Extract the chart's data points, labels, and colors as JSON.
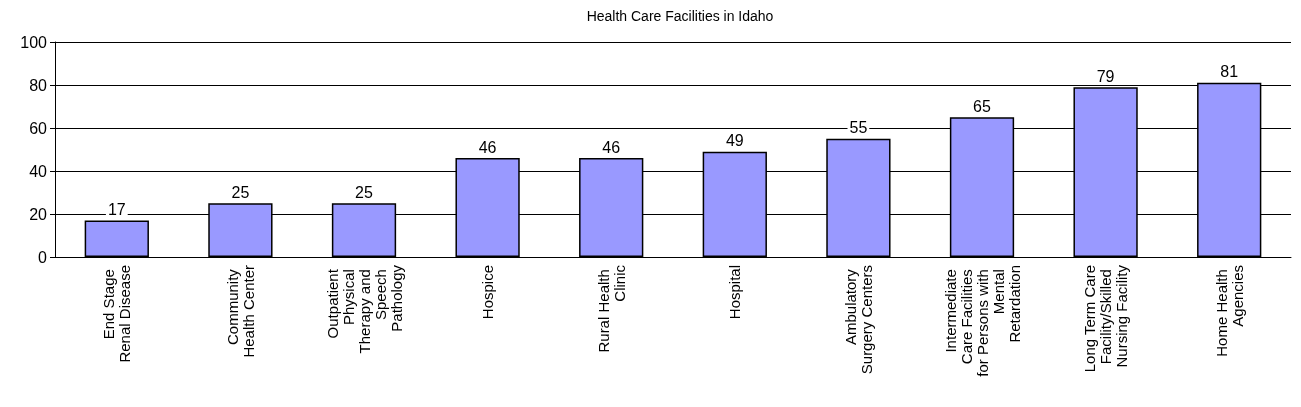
{
  "chart_data": {
    "type": "bar",
    "title": "Health Care Facilities in Idaho",
    "categories": [
      "End Stage Renal Disease",
      "Community Health Center",
      "Outpatient Physical Therapy and Speech Pathology",
      "Hospice",
      "Rural Health Clinic",
      "Hospital",
      "Ambulatory Surgery Centers",
      "Intermediate Care Facilities for Persons with Mental Retardation",
      "Long Term Care Facility/Skilled Nursing Facility",
      "Home Health Agencies"
    ],
    "values": [
      17,
      25,
      25,
      46,
      46,
      49,
      55,
      65,
      79,
      81
    ],
    "color": "#9999ff",
    "ylim": [
      0,
      100
    ],
    "yticks": [
      0,
      20,
      40,
      60,
      80,
      100
    ],
    "grid": "y",
    "data_labels": true
  }
}
